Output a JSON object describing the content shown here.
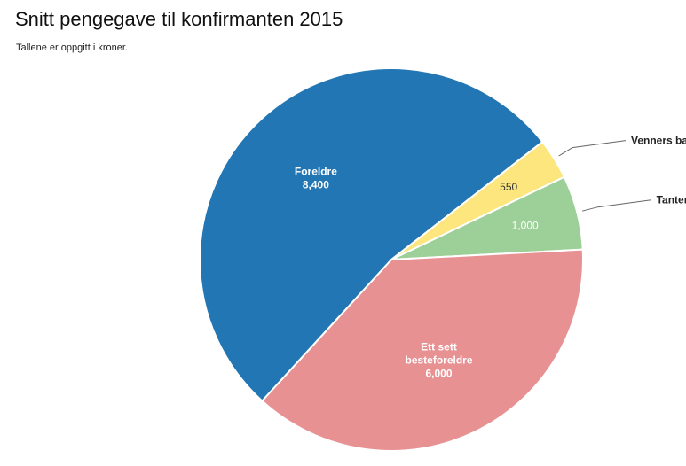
{
  "chart_data": {
    "type": "pie",
    "title": "Snitt pengegave til konfirmanten 2015",
    "subtitle": "Tallene er oppgitt i kroner.",
    "slices": [
      {
        "name": "Venners barn",
        "value": 550,
        "value_label": "550",
        "color": "#fde67e",
        "label_lines": [],
        "value_color": "#333333",
        "label_position": "outside"
      },
      {
        "name": "Tanter / onkler",
        "value": 1000,
        "value_label": "1,000",
        "color": "#9dd098",
        "label_lines": [],
        "value_color": "#ffffff",
        "label_position": "outside"
      },
      {
        "name": "Ett sett besteforeldre",
        "value": 6000,
        "value_label": "6,000",
        "color": "#e89193",
        "label_lines": [
          "Ett sett",
          "besteforeldre"
        ],
        "value_color": "#ffffff",
        "label_position": "inside"
      },
      {
        "name": "Foreldre",
        "value": 8400,
        "value_label": "8,400",
        "color": "#2176b3",
        "label_lines": [
          "Foreldre"
        ],
        "value_color": "#ffffff",
        "label_position": "inside"
      }
    ]
  }
}
